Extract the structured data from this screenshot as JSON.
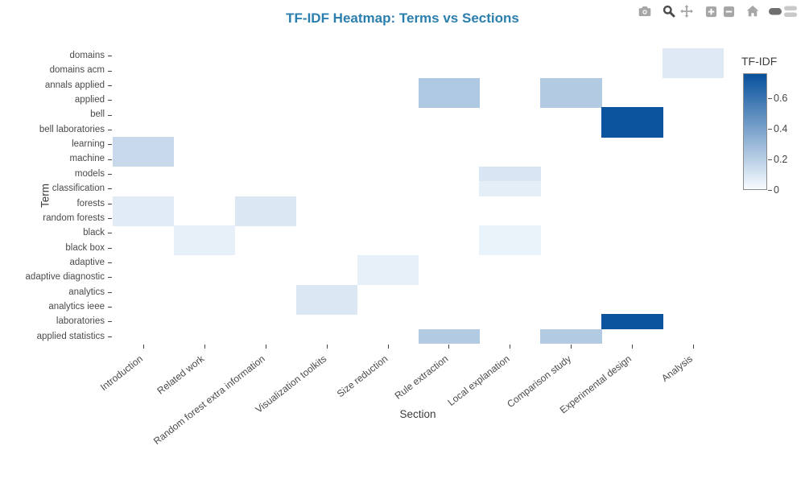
{
  "colors": {
    "title_text": "#2b7fae",
    "modebar_inactive": "#a6a6a6",
    "modebar_active": "#4c4c4c"
  },
  "modebar": {
    "buttons": [
      "camera",
      "zoom",
      "pan",
      "zoom-in",
      "zoom-out",
      "home",
      "plotly-logo"
    ]
  },
  "chart_data": {
    "type": "heatmap",
    "title": "TF-IDF Heatmap: Terms vs Sections",
    "xlabel": "Section",
    "ylabel": "Term",
    "x": [
      "Introduction",
      "Related work",
      "Random forest extra information",
      "Visualization toolkits",
      "Size reduction",
      "Rule extraction",
      "Local explanation",
      "Comparison study",
      "Experimental design",
      "Analysis"
    ],
    "y": [
      "domains",
      "domains acm",
      "annals applied",
      "applied",
      "bell",
      "bell laboratories",
      "learning",
      "machine",
      "models",
      "classification",
      "forests",
      "random forests",
      "black",
      "black box",
      "adaptive",
      "adaptive diagnostic",
      "analytics",
      "analytics ieee",
      "laboratories",
      "applied statistics"
    ],
    "zmin": 0,
    "zmax": 0.76,
    "default_value": 0,
    "colorscale": [
      [
        "0",
        "#f7fbff"
      ],
      [
        "1",
        "#08519c"
      ]
    ],
    "colorbar": {
      "title": "TF-IDF",
      "ticks": [
        0,
        0.2,
        0.4,
        0.6
      ],
      "tick_labels": [
        "0",
        "0.2",
        "0.4",
        "0.6"
      ]
    },
    "grid": false,
    "cells": [
      {
        "term": "domains",
        "section": "Analysis",
        "value": 0.08
      },
      {
        "term": "domains acm",
        "section": "Analysis",
        "value": 0.08
      },
      {
        "term": "annals applied",
        "section": "Rule extraction",
        "value": 0.23
      },
      {
        "term": "annals applied",
        "section": "Comparison study",
        "value": 0.22
      },
      {
        "term": "applied",
        "section": "Rule extraction",
        "value": 0.23
      },
      {
        "term": "applied",
        "section": "Comparison study",
        "value": 0.22
      },
      {
        "term": "bell",
        "section": "Experimental design",
        "value": 0.75
      },
      {
        "term": "bell laboratories",
        "section": "Experimental design",
        "value": 0.75
      },
      {
        "term": "learning",
        "section": "Introduction",
        "value": 0.15
      },
      {
        "term": "machine",
        "section": "Introduction",
        "value": 0.15
      },
      {
        "term": "models",
        "section": "Local explanation",
        "value": 0.1
      },
      {
        "term": "classification",
        "section": "Local explanation",
        "value": 0.06
      },
      {
        "term": "forests",
        "section": "Introduction",
        "value": 0.07
      },
      {
        "term": "forests",
        "section": "Random forest extra information",
        "value": 0.09
      },
      {
        "term": "random forests",
        "section": "Introduction",
        "value": 0.07
      },
      {
        "term": "random forests",
        "section": "Random forest extra information",
        "value": 0.09
      },
      {
        "term": "black",
        "section": "Related work",
        "value": 0.05
      },
      {
        "term": "black",
        "section": "Local explanation",
        "value": 0.04
      },
      {
        "term": "black box",
        "section": "Related work",
        "value": 0.05
      },
      {
        "term": "black box",
        "section": "Local explanation",
        "value": 0.04
      },
      {
        "term": "adaptive",
        "section": "Size reduction",
        "value": 0.05
      },
      {
        "term": "adaptive diagnostic",
        "section": "Size reduction",
        "value": 0.05
      },
      {
        "term": "analytics",
        "section": "Visualization toolkits",
        "value": 0.09
      },
      {
        "term": "analytics ieee",
        "section": "Visualization toolkits",
        "value": 0.09
      },
      {
        "term": "laboratories",
        "section": "Experimental design",
        "value": 0.75
      },
      {
        "term": "applied statistics",
        "section": "Rule extraction",
        "value": 0.22
      },
      {
        "term": "applied statistics",
        "section": "Comparison study",
        "value": 0.22
      }
    ]
  }
}
